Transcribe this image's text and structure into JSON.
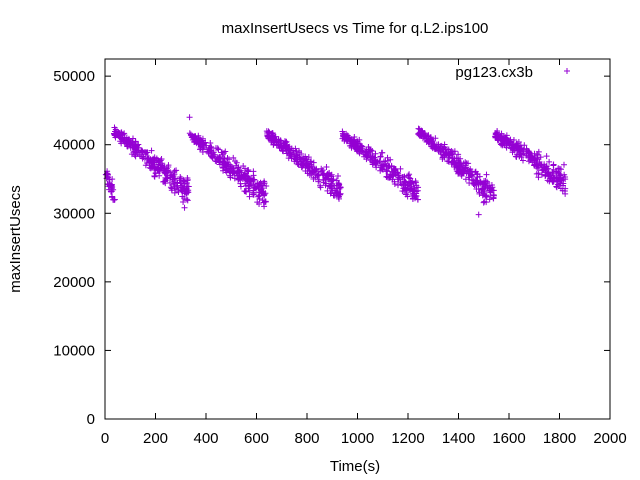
{
  "chart_data": {
    "type": "scatter",
    "title": "maxInsertUsecs vs Time for q.L2.ips100",
    "xlabel": "Time(s)",
    "ylabel": "maxInsertUsecs",
    "xlim": [
      0,
      2000
    ],
    "ylim": [
      0,
      52500
    ],
    "xticks": [
      "0",
      "200",
      "400",
      "600",
      "800",
      "1000",
      "1200",
      "1400",
      "1600",
      "1800",
      "2000"
    ],
    "yticks": [
      "0",
      "10000",
      "20000",
      "30000",
      "40000",
      "50000"
    ],
    "grid": false,
    "legend_position": "top-right",
    "marker": "+",
    "series": [
      {
        "name": "pg123.cx3b",
        "color": "#9400d3",
        "segments": [
          {
            "x": [
              0,
              40
            ],
            "y": [
              36000,
              32000
            ]
          },
          {
            "x": [
              35,
              335
            ],
            "y": [
              42000,
              33000
            ]
          },
          {
            "x": [
              335,
              640
            ],
            "y": [
              41500,
              32500
            ]
          },
          {
            "x": [
              640,
              940
            ],
            "y": [
              41500,
              33000
            ]
          },
          {
            "x": [
              940,
              1240
            ],
            "y": [
              41500,
              33000
            ]
          },
          {
            "x": [
              1240,
              1545
            ],
            "y": [
              42000,
              32500
            ]
          },
          {
            "x": [
              1545,
              1825
            ],
            "y": [
              41500,
              34500
            ]
          }
        ],
        "outliers": [
          {
            "x": 335,
            "y": 44000
          },
          {
            "x": 1480,
            "y": 29800
          },
          {
            "x": 315,
            "y": 30800
          },
          {
            "x": 630,
            "y": 31000
          }
        ]
      }
    ]
  }
}
